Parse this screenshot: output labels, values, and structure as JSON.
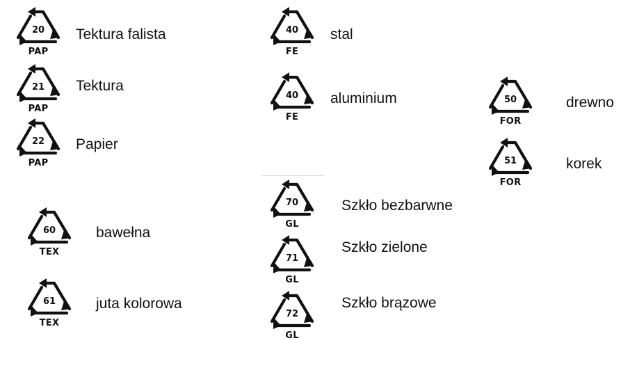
{
  "groups": {
    "paper": [
      {
        "code": "20",
        "abbr": "PAP",
        "label": "Tektura falista"
      },
      {
        "code": "21",
        "abbr": "PAP",
        "label": "Tektura"
      },
      {
        "code": "22",
        "abbr": "PAP",
        "label": "Papier"
      }
    ],
    "textile": [
      {
        "code": "60",
        "abbr": "TEX",
        "label": "bawełna"
      },
      {
        "code": "61",
        "abbr": "TEX",
        "label": "juta kolorowa"
      }
    ],
    "metal": [
      {
        "code": "40",
        "abbr": "FE",
        "label": "stal"
      },
      {
        "code": "40",
        "abbr": "FE",
        "label": "aluminium"
      }
    ],
    "glass": [
      {
        "code": "70",
        "abbr": "GL",
        "label": "Szkło bezbarwne"
      },
      {
        "code": "71",
        "abbr": "GL",
        "label": "Szkło zielone"
      },
      {
        "code": "72",
        "abbr": "GL",
        "label": "Szkło brązowe"
      }
    ],
    "organic": [
      {
        "code": "50",
        "abbr": "FOR",
        "label": "drewno"
      },
      {
        "code": "51",
        "abbr": "FOR",
        "label": "korek"
      }
    ]
  },
  "icon": "recycling-triangle-icon",
  "colors": {
    "symbol": "#111111",
    "text": "#111111",
    "divider": "#d8d8d8"
  }
}
